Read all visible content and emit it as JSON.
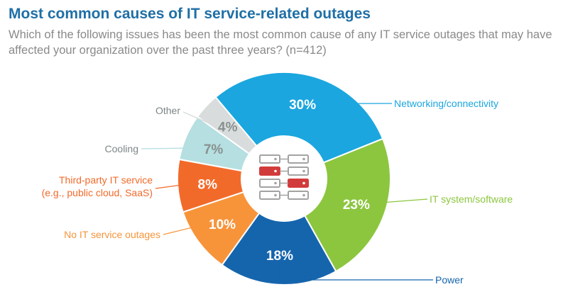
{
  "chart_data": {
    "type": "pie",
    "title": "Most common causes of IT service-related outages",
    "subtitle": "Which of the following issues has been the most common cause of any IT service outages that may have affected your organization over the past three years? (n=412)",
    "slices": [
      {
        "name": "Networking/connectivity",
        "value": 30,
        "label": "30%",
        "color": "#1ba6df"
      },
      {
        "name": "IT system/software",
        "value": 23,
        "label": "23%",
        "color": "#8cc63f"
      },
      {
        "name": "Power",
        "value": 18,
        "label": "18%",
        "color": "#1565ad"
      },
      {
        "name": "No IT service outages",
        "value": 10,
        "label": "10%",
        "color": "#f7943a"
      },
      {
        "name": "Third-party IT service\n(e.g., public cloud, SaaS)",
        "value": 8,
        "label": "8%",
        "color": "#f26a2a"
      },
      {
        "name": "Cooling",
        "value": 7,
        "label": "7%",
        "color": "#b5dfe0"
      },
      {
        "name": "Other",
        "value": 4,
        "label": "4%",
        "color": "#d8dcdc"
      }
    ]
  },
  "colors": {
    "title": "#1f6fa6",
    "subtitle": "#8a8a8a",
    "pct_light_text": "#8a9090",
    "icon_gray": "#a3a3a3",
    "icon_red": "#d23b3b"
  },
  "center_icon": "server-rack-icon"
}
